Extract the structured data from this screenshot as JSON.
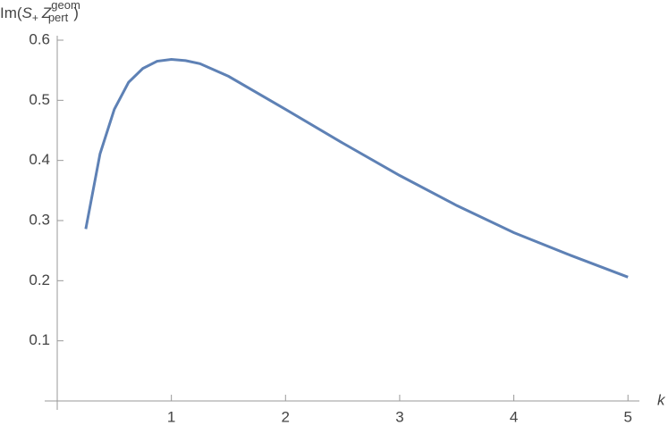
{
  "chart_data": {
    "type": "line",
    "y_label": [
      "Im(",
      "S",
      "+",
      "Z",
      "geom",
      "pert",
      ")"
    ],
    "x_label": "k",
    "x": [
      0.25,
      0.375,
      0.5,
      0.625,
      0.75,
      0.875,
      1.0,
      1.125,
      1.25,
      1.5,
      2.0,
      2.5,
      3.0,
      3.5,
      4.0,
      4.5,
      5.0
    ],
    "series": [
      {
        "color": "#5e81b5",
        "values": [
          0.286,
          0.411,
          0.485,
          0.53,
          0.553,
          0.565,
          0.568,
          0.566,
          0.561,
          0.54,
          0.485,
          0.429,
          0.375,
          0.325,
          0.28,
          0.242,
          0.206
        ]
      }
    ],
    "xlim": [
      0,
      5.1
    ],
    "ylim": [
      0,
      0.6
    ],
    "xticks": [
      1,
      2,
      3,
      4,
      5
    ],
    "yticks": [
      0.1,
      0.2,
      0.3,
      0.4,
      0.5,
      0.6
    ]
  }
}
